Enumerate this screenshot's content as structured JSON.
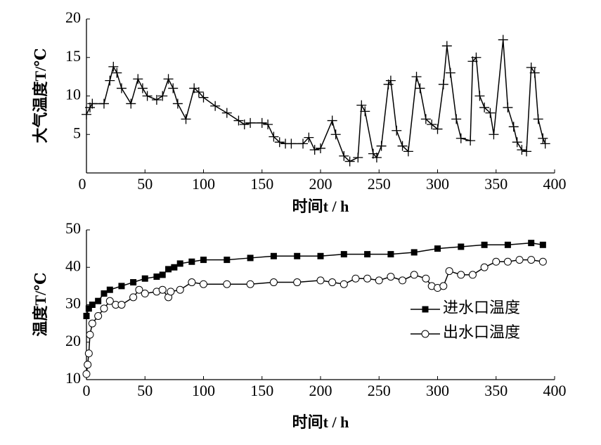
{
  "chart_data": [
    {
      "type": "line",
      "xlabel": "时间t / h",
      "ylabel": "大气温度T/℃",
      "xlim": [
        0,
        400
      ],
      "ylim": [
        0,
        20
      ],
      "xticks": [
        0,
        50,
        100,
        150,
        200,
        250,
        300,
        350,
        400
      ],
      "yticks": [
        5,
        10,
        15,
        20
      ],
      "series": [
        {
          "color": "#000000",
          "marker": "plus",
          "x": [
            0,
            3,
            5,
            15,
            20,
            23,
            26,
            30,
            38,
            44,
            48,
            52,
            60,
            65,
            70,
            74,
            78,
            85,
            92,
            96,
            100,
            110,
            120,
            130,
            135,
            140,
            150,
            155,
            160,
            165,
            170,
            175,
            185,
            190,
            195,
            200,
            210,
            213,
            220,
            225,
            232,
            235,
            238,
            245,
            248,
            252,
            258,
            260,
            265,
            270,
            275,
            282,
            285,
            290,
            295,
            300,
            305,
            308,
            311,
            316,
            320,
            328,
            330,
            333,
            336,
            340,
            345,
            348,
            356,
            360,
            365,
            368,
            372,
            376,
            380,
            383,
            386,
            390,
            392
          ],
          "values": [
            7.6,
            8.5,
            9,
            9,
            12,
            13.8,
            13,
            11,
            9,
            12.2,
            11,
            10,
            9.5,
            10,
            12.2,
            11,
            9,
            7,
            11,
            10.5,
            9.8,
            8.7,
            7.8,
            6.8,
            6.3,
            6.5,
            6.5,
            6.3,
            4.7,
            4,
            3.8,
            3.8,
            3.8,
            4.6,
            3,
            3.2,
            6.8,
            5,
            2.2,
            1.5,
            2,
            8.8,
            8,
            2.5,
            2,
            3.5,
            11.5,
            12,
            5.5,
            3.5,
            2.8,
            12.5,
            11,
            7,
            6.3,
            5.7,
            11.5,
            16.5,
            13,
            7,
            4.5,
            4.2,
            14.5,
            15,
            10,
            8.5,
            7.8,
            5,
            17.3,
            8.5,
            6,
            4,
            3,
            2.8,
            13.7,
            13,
            7,
            4.5,
            3.8
          ]
        }
      ]
    },
    {
      "type": "line",
      "xlabel": "时间t / h",
      "ylabel": "温度T/℃",
      "xlim": [
        0,
        400
      ],
      "ylim": [
        10,
        50
      ],
      "xticks": [
        0,
        50,
        100,
        150,
        200,
        250,
        300,
        350,
        400
      ],
      "yticks": [
        10,
        20,
        30,
        40,
        50
      ],
      "legend": "lower right",
      "series": [
        {
          "name": "进水口温度",
          "color": "#000000",
          "marker": "square",
          "x": [
            0,
            2,
            5,
            10,
            15,
            20,
            30,
            40,
            50,
            60,
            65,
            70,
            75,
            80,
            90,
            100,
            120,
            140,
            160,
            180,
            200,
            220,
            240,
            260,
            280,
            300,
            320,
            340,
            360,
            380,
            390
          ],
          "values": [
            27,
            29,
            30,
            31,
            33,
            34,
            35,
            36,
            37,
            37.5,
            38,
            39.5,
            40,
            41,
            41.5,
            42,
            42,
            42.5,
            43,
            43,
            43,
            43.5,
            43.5,
            43.5,
            44,
            45,
            45.5,
            46,
            46,
            46.5,
            46
          ]
        },
        {
          "name": "出水口温度",
          "color": "#000000",
          "marker": "circle",
          "x": [
            0,
            1,
            2,
            3,
            5,
            10,
            15,
            20,
            25,
            30,
            40,
            45,
            50,
            60,
            65,
            70,
            72,
            80,
            90,
            100,
            120,
            140,
            160,
            180,
            200,
            210,
            220,
            230,
            240,
            250,
            260,
            270,
            280,
            290,
            295,
            300,
            305,
            310,
            320,
            330,
            340,
            350,
            360,
            370,
            380,
            390
          ],
          "values": [
            11.5,
            14,
            17,
            22,
            25,
            27,
            29,
            31,
            30,
            30,
            32,
            34,
            33,
            33.5,
            34,
            32,
            33.5,
            34,
            36,
            35.5,
            35.5,
            35.5,
            36,
            36,
            36.5,
            36,
            35.5,
            37,
            37,
            36.5,
            37.5,
            36.5,
            38,
            37,
            35,
            34.5,
            35,
            39,
            38,
            38,
            40,
            41.5,
            41.5,
            42,
            42,
            41.5
          ]
        }
      ]
    }
  ]
}
